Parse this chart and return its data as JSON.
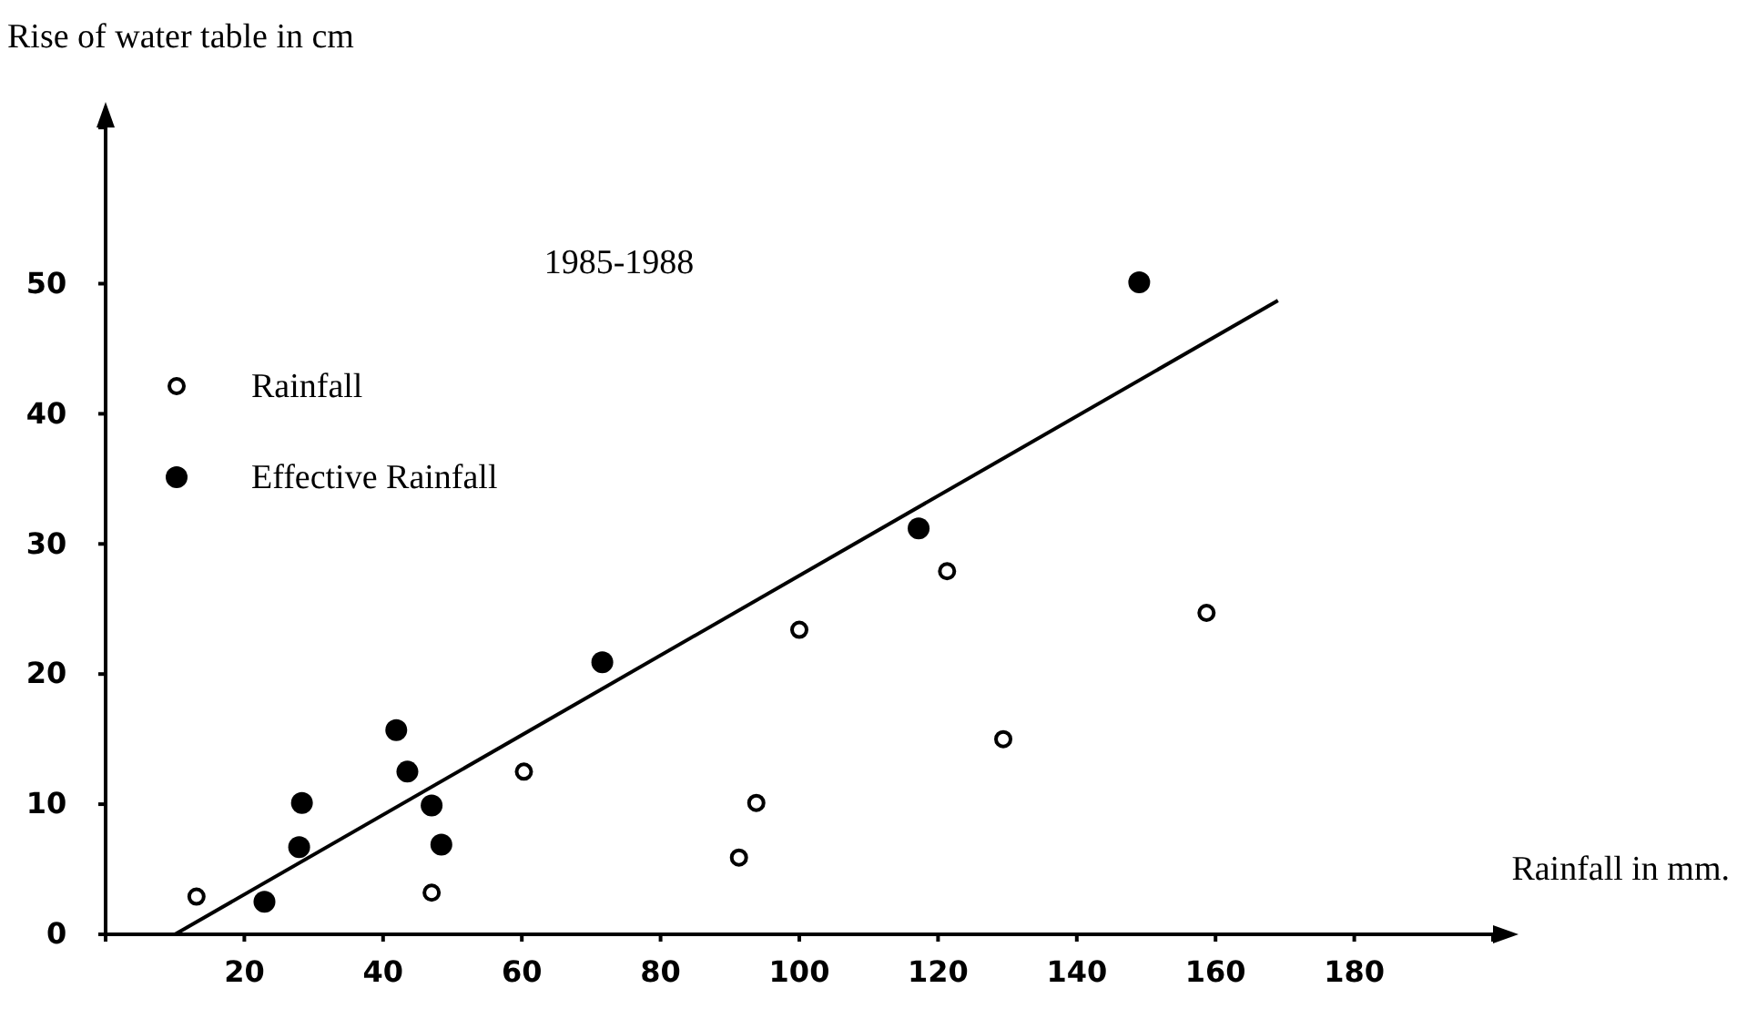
{
  "chart_data": {
    "type": "scatter",
    "title": "1985-1988",
    "xlabel": "Rainfall in mm.",
    "ylabel": "Rise of water table in cm",
    "xlim": [
      0,
      200
    ],
    "ylim": [
      0,
      62
    ],
    "xticks": [
      20,
      40,
      60,
      80,
      100,
      120,
      140,
      160,
      180
    ],
    "yticks": [
      0,
      10,
      20,
      30,
      40,
      50
    ],
    "grid": false,
    "legend": "top left",
    "series": [
      {
        "name": "Rainfall",
        "marker": "circle",
        "color": "#000000",
        "x": [
          13.1,
          47.0,
          60.3,
          91.3,
          93.8,
          100,
          121.3,
          129.4,
          158.7
        ],
        "values": [
          2.9,
          3.2,
          12.5,
          5.9,
          10.1,
          23.4,
          27.9,
          15.0,
          24.7
        ]
      },
      {
        "name": "Effective Rainfall",
        "marker": "circle",
        "color": "#000000",
        "x": [
          22.9,
          27.9,
          28.3,
          41.9,
          43.5,
          47.0,
          48.4,
          71.6,
          117.2,
          149
        ],
        "values": [
          2.5,
          6.7,
          10.1,
          15.7,
          12.5,
          9.9,
          6.9,
          20.9,
          31.2,
          50.1
        ]
      },
      {
        "type": "line",
        "color": "#000000",
        "line_style": "solid",
        "x": [
          10,
          169
        ],
        "values": [
          0,
          48.7
        ]
      }
    ]
  }
}
